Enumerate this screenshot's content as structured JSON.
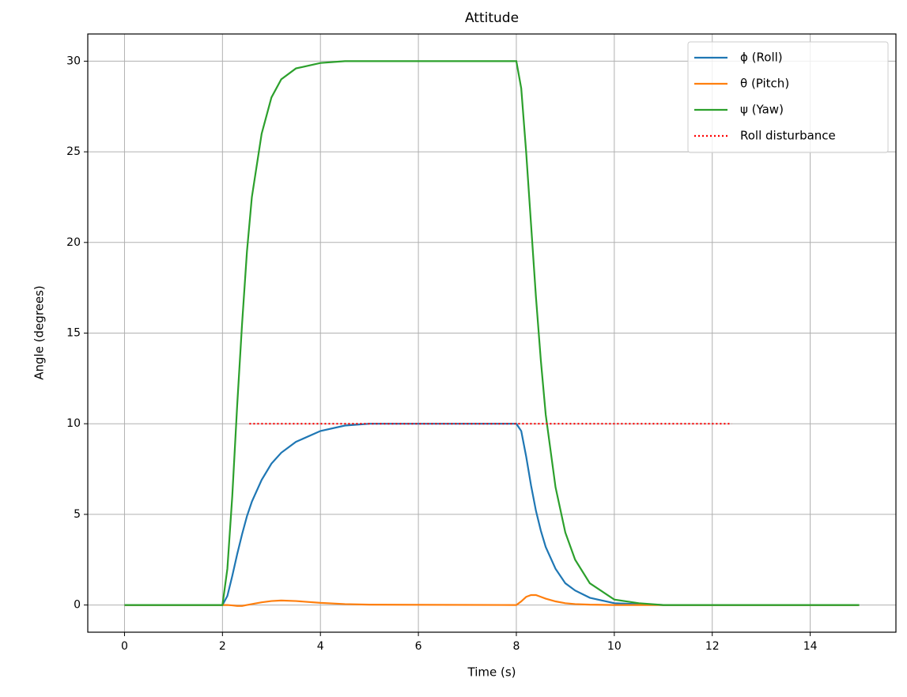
{
  "chart_data": {
    "type": "line",
    "title": "Attitude",
    "x_label": "Time (s)",
    "y_label": "Angle (degrees)",
    "x": [
      0,
      2,
      2.1,
      2.2,
      2.3,
      2.4,
      2.5,
      2.6,
      2.8,
      3.0,
      3.2,
      3.5,
      4,
      4.5,
      5,
      8,
      8.1,
      8.2,
      8.3,
      8.4,
      8.5,
      8.6,
      8.8,
      9,
      9.2,
      9.5,
      10,
      10.5,
      11,
      15
    ],
    "series": [
      {
        "name": "ϕ (Roll)",
        "color": "#1f77b4",
        "linestyle": "solid",
        "values": [
          0,
          0,
          0.5,
          1.6,
          2.8,
          3.9,
          4.9,
          5.7,
          6.9,
          7.8,
          8.4,
          9.0,
          9.6,
          9.9,
          10,
          10,
          9.6,
          8.2,
          6.6,
          5.2,
          4.1,
          3.2,
          2.0,
          1.2,
          0.8,
          0.4,
          0.1,
          0.05,
          0,
          0
        ]
      },
      {
        "name": "θ (Pitch)",
        "color": "#ff7f0e",
        "linestyle": "solid",
        "values": [
          0,
          0,
          0,
          -0.02,
          -0.05,
          -0.05,
          0,
          0.05,
          0.15,
          0.22,
          0.25,
          0.22,
          0.12,
          0.05,
          0.02,
          0,
          0.2,
          0.45,
          0.55,
          0.55,
          0.45,
          0.35,
          0.2,
          0.1,
          0.05,
          0.02,
          0,
          0,
          0,
          0
        ]
      },
      {
        "name": "ψ (Yaw)",
        "color": "#2ca02c",
        "linestyle": "solid",
        "values": [
          0,
          0,
          2,
          6,
          11,
          15.5,
          19.5,
          22.5,
          26,
          28,
          29,
          29.6,
          29.9,
          30,
          30,
          30,
          28.5,
          25,
          21,
          17,
          13.5,
          10.5,
          6.5,
          4,
          2.5,
          1.2,
          0.3,
          0.1,
          0,
          0
        ]
      },
      {
        "name": "Roll disturbance",
        "color": "#ff0000",
        "linestyle": "dotted",
        "x": [
          2.55,
          12.4
        ],
        "values": [
          10,
          10
        ]
      }
    ],
    "xlim": [
      -0.75,
      15.75
    ],
    "ylim": [
      -1.5,
      31.5
    ],
    "xticks": [
      0,
      2,
      4,
      6,
      8,
      10,
      12,
      14
    ],
    "yticks": [
      0,
      5,
      10,
      15,
      20,
      25,
      30
    ],
    "grid": true,
    "legend": "upper right"
  }
}
